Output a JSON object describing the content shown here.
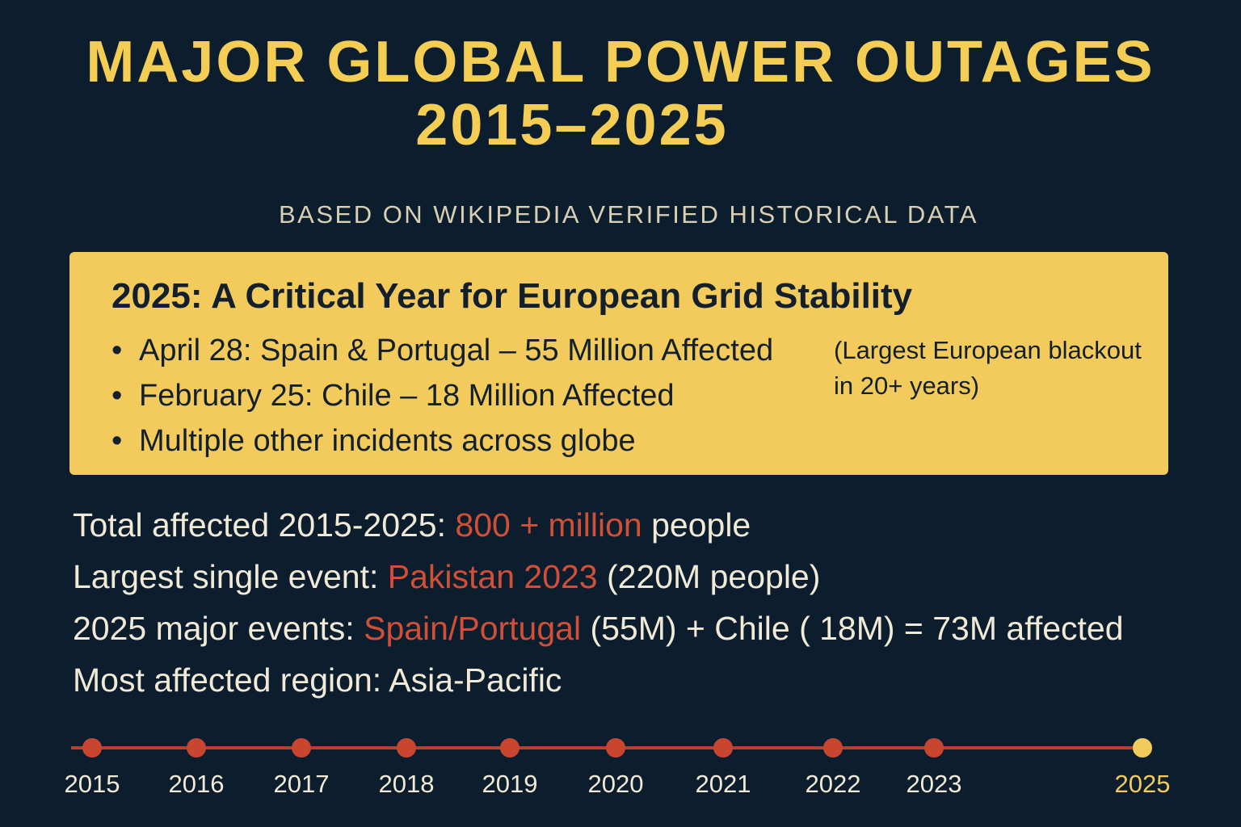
{
  "header": {
    "title_line1": "MAJOR  GLOBAL POWER OUTAGES",
    "title_line2": "2015–2025",
    "subtitle": "BASED ON WIKIPEDIA VERIFIED HISTORICAL DATA"
  },
  "callout": {
    "heading": "2025: A Critical Year for European Grid Stability",
    "bullets": [
      "April 28: Spain & Portugal – 55 Million Affected",
      "February 25: Chile – 18 Million Affected",
      "Multiple other incidents across globe"
    ],
    "note": "(Largest European blackout in 20+ years)"
  },
  "stats": [
    {
      "label": "Total affected 2015-2025: ",
      "highlight": "800 + million",
      "suffix": " people"
    },
    {
      "label": "Largest single event: ",
      "highlight": "Pakistan 2023",
      "suffix": " (220M people)"
    },
    {
      "label": "2025 major events: ",
      "highlight": "Spain/Portugal",
      "suffix": " (55M) + Chile ( 18M) = 73M affected"
    },
    {
      "label": "Most affected region: Asia-Pacific",
      "highlight": "",
      "suffix": ""
    }
  ],
  "timeline": {
    "years": [
      "2015",
      "2016",
      "2017",
      "2018",
      "2019",
      "2020",
      "2021",
      "2022",
      "2023",
      "2025"
    ],
    "highlighted_year": "2025"
  },
  "colors": {
    "background": "#0c1e2e",
    "title": "#f4cd55",
    "callout_bg": "#f2cb5c",
    "highlight": "#d24f37",
    "timeline_line": "#b8412e",
    "timeline_dot": "#c9452f",
    "timeline_dot_current": "#f2cb5c"
  }
}
